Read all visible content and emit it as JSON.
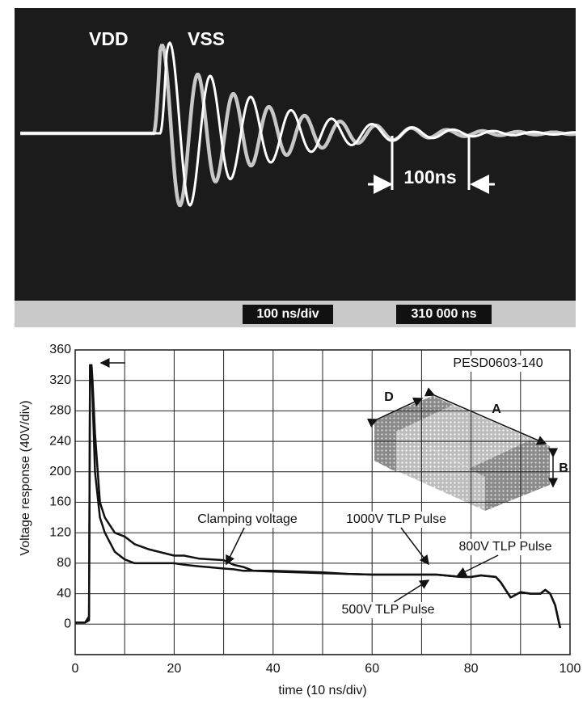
{
  "scope": {
    "trace_labels": [
      "VDD",
      "VSS"
    ],
    "marker_label": "100ns",
    "timebase": "100 ns/div",
    "position": "310 000 ns"
  },
  "chart_data": {
    "type": "line",
    "xlabel": "time (10 ns/div)",
    "ylabel": "Voltage response (40V/div)",
    "xlim": [
      0,
      100
    ],
    "ylim": [
      -40,
      360
    ],
    "xticks": [
      0,
      20,
      40,
      60,
      80,
      100
    ],
    "xgrid_minor": [
      10,
      30,
      50,
      70,
      90
    ],
    "yticks": [
      0,
      40,
      80,
      120,
      160,
      200,
      240,
      280,
      320,
      360
    ],
    "grid": true,
    "x": [
      0,
      2,
      2.8,
      3,
      3.3,
      3.5,
      4,
      5,
      6,
      8,
      10,
      12,
      15,
      20,
      22,
      25,
      30,
      32,
      34,
      36,
      40,
      50,
      55,
      60,
      70,
      73,
      78,
      80,
      82,
      85,
      86,
      87,
      88,
      90,
      92,
      94,
      95,
      96,
      97,
      98
    ],
    "series": [
      {
        "name": "1000V TLP Pulse",
        "color": "#111111",
        "values": [
          2,
          2,
          10,
          340,
          340,
          320,
          250,
          160,
          140,
          120,
          115,
          105,
          98,
          90,
          90,
          86,
          84,
          78,
          75,
          70,
          70,
          68,
          66,
          65,
          65,
          65,
          62,
          62,
          64,
          62,
          55,
          45,
          35,
          42,
          40,
          40,
          45,
          40,
          25,
          -5
        ]
      },
      {
        "name": "500V TLP Pulse",
        "color": "#111111",
        "values": [
          2,
          2,
          5,
          340,
          340,
          300,
          200,
          140,
          120,
          95,
          85,
          80,
          80,
          80,
          78,
          76,
          73,
          72,
          70,
          70,
          69,
          67,
          66,
          65,
          65,
          65,
          62,
          62,
          64,
          62,
          55,
          45,
          35,
          42,
          40,
          40,
          45,
          40,
          25,
          -5
        ]
      }
    ],
    "annotations": [
      "PESD0603-140",
      "Clamping voltage",
      "800V TLP Pulse"
    ],
    "inset_labels": [
      "D",
      "A",
      "B"
    ]
  }
}
